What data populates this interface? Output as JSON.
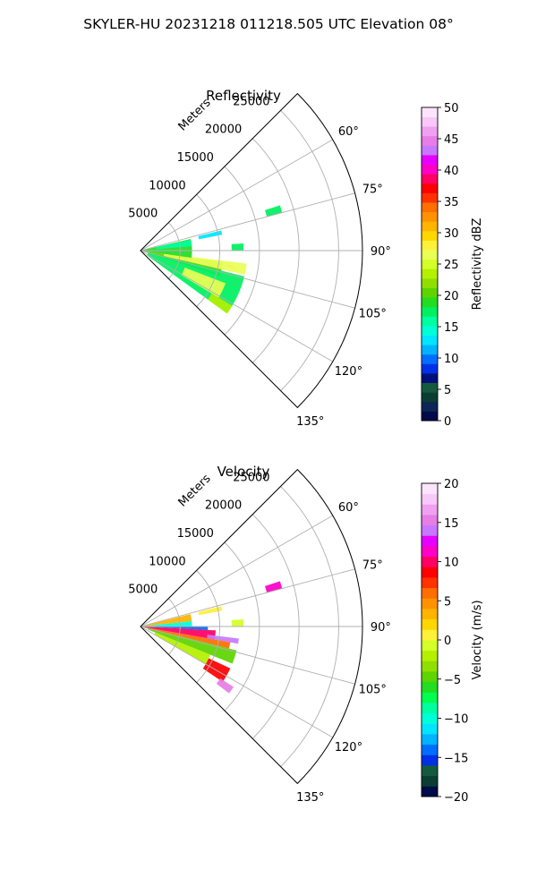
{
  "figure": {
    "suptitle": "SKYLER-HU  20231218  011218.505 UTC Elevation 08°"
  },
  "chart_data": [
    {
      "type": "heatmap",
      "title": "Reflectivity",
      "projection": "polar sector",
      "radial_axis_label": "Meters",
      "radial_ticks": [
        5000,
        10000,
        15000,
        20000,
        25000
      ],
      "radial_tick_labels": [
        "5000",
        "10000",
        "15000",
        "20000",
        "25000"
      ],
      "azimuth_range_deg": [
        45,
        135
      ],
      "azimuth_ticks": [
        60,
        75,
        90,
        105,
        120,
        135
      ],
      "azimuth_tick_labels": [
        "60°",
        "75°",
        "90°",
        "105°",
        "120°",
        "135°"
      ],
      "grid": true,
      "colorbar": {
        "label": "Reflectivity dBZ",
        "range": [
          0,
          50
        ],
        "ticks": [
          0,
          5,
          10,
          15,
          20,
          25,
          30,
          35,
          40,
          45,
          50
        ],
        "tick_labels": [
          "0",
          "5",
          "10",
          "15",
          "20",
          "25",
          "30",
          "35",
          "40",
          "45",
          "50"
        ],
        "colors": [
          "#000b4a",
          "#0c2658",
          "#0b3e33",
          "#145a40",
          "#001078",
          "#0030e6",
          "#006eff",
          "#00b4ff",
          "#00e6ff",
          "#00ffd8",
          "#00ffa0",
          "#00f060",
          "#22dd22",
          "#5ed400",
          "#8fe000",
          "#b4f000",
          "#d4ff28",
          "#eaff55",
          "#fff03a",
          "#ffd700",
          "#ffb400",
          "#ff9200",
          "#ff6e00",
          "#ff3200",
          "#ff0000",
          "#ff0064",
          "#ff00c8",
          "#e600ff",
          "#c878ff",
          "#e67ee6",
          "#f0a0f0",
          "#f8c8f8",
          "#fce4fc"
        ]
      },
      "echoes": [
        {
          "az": [
            98,
            108
          ],
          "range": [
            0,
            10500
          ],
          "value": 21
        },
        {
          "az": [
            104,
            126
          ],
          "range": [
            1000,
            13500
          ],
          "value": 17
        },
        {
          "az": [
            97,
            103
          ],
          "range": [
            3000,
            13500
          ],
          "value": 26
        },
        {
          "az": [
            111,
            121
          ],
          "range": [
            6000,
            11500
          ],
          "value": 26
        },
        {
          "az": [
            121,
            126
          ],
          "range": [
            10500,
            13500
          ],
          "value": 24
        },
        {
          "az": [
            77,
            98
          ],
          "range": [
            0,
            6500
          ],
          "value": 19
        },
        {
          "az": [
            78,
            85
          ],
          "range": [
            2000,
            6500
          ],
          "value": 16
        },
        {
          "az": [
            76,
            79
          ],
          "range": [
            7500,
            10500
          ],
          "value": 13
        },
        {
          "az": [
            72,
            75
          ],
          "range": [
            16500,
            18500
          ],
          "value": 18
        },
        {
          "az": [
            86,
            90
          ],
          "range": [
            11500,
            13000
          ],
          "value": 17
        }
      ]
    },
    {
      "type": "heatmap",
      "title": "Velocity",
      "projection": "polar sector",
      "radial_axis_label": "Meters",
      "radial_ticks": [
        5000,
        10000,
        15000,
        20000,
        25000
      ],
      "radial_tick_labels": [
        "5000",
        "10000",
        "15000",
        "20000",
        "25000"
      ],
      "azimuth_range_deg": [
        45,
        135
      ],
      "azimuth_ticks": [
        60,
        75,
        90,
        105,
        120,
        135
      ],
      "azimuth_tick_labels": [
        "60°",
        "75°",
        "90°",
        "105°",
        "120°",
        "135°"
      ],
      "grid": true,
      "colorbar": {
        "label": "Velocity (m/s)",
        "range": [
          -20,
          20
        ],
        "ticks": [
          -20,
          -15,
          -10,
          -5,
          0,
          5,
          10,
          15,
          20
        ],
        "tick_labels": [
          "−20",
          "−15",
          "−10",
          "−5",
          "0",
          "5",
          "10",
          "15",
          "20"
        ],
        "colors": [
          "#000b4a",
          "#0b3e33",
          "#145a40",
          "#0030e6",
          "#006eff",
          "#00b4ff",
          "#00e6ff",
          "#00ffd8",
          "#00ffa0",
          "#00ff50",
          "#22dd22",
          "#5ed400",
          "#8fe000",
          "#b4f000",
          "#d4ff28",
          "#fff03a",
          "#ffd700",
          "#ffb400",
          "#ff9200",
          "#ff6e00",
          "#ff3200",
          "#ff0000",
          "#ff0064",
          "#ff00c8",
          "#e600ff",
          "#c878ff",
          "#e67ee6",
          "#f0a0f0",
          "#f8c8f8",
          "#fce4fc"
        ]
      },
      "echoes": [
        {
          "az": [
            76,
            84
          ],
          "range": [
            0,
            6500
          ],
          "value": 3
        },
        {
          "az": [
            84,
            90
          ],
          "range": [
            0,
            6500
          ],
          "value": -10
        },
        {
          "az": [
            90,
            93
          ],
          "range": [
            0,
            8500
          ],
          "value": -14
        },
        {
          "az": [
            93,
            100
          ],
          "range": [
            0,
            9500
          ],
          "value": 10
        },
        {
          "az": [
            97,
            100
          ],
          "range": [
            8500,
            12500
          ],
          "value": 14
        },
        {
          "az": [
            100,
            104
          ],
          "range": [
            0,
            11500
          ],
          "value": 6
        },
        {
          "az": [
            104,
            112
          ],
          "range": [
            1000,
            12500
          ],
          "value": -5
        },
        {
          "az": [
            112,
            120
          ],
          "range": [
            2000,
            9500
          ],
          "value": -2
        },
        {
          "az": [
            115,
            124
          ],
          "range": [
            9500,
            12500
          ],
          "value": 9
        },
        {
          "az": [
            123,
            127
          ],
          "range": [
            12000,
            14000
          ],
          "value": 15
        },
        {
          "az": [
            76,
            79
          ],
          "range": [
            7500,
            10500
          ],
          "value": 0
        },
        {
          "az": [
            72,
            75
          ],
          "range": [
            16500,
            18500
          ],
          "value": 11
        },
        {
          "az": [
            86,
            90
          ],
          "range": [
            11500,
            13000
          ],
          "value": -1
        }
      ]
    }
  ]
}
